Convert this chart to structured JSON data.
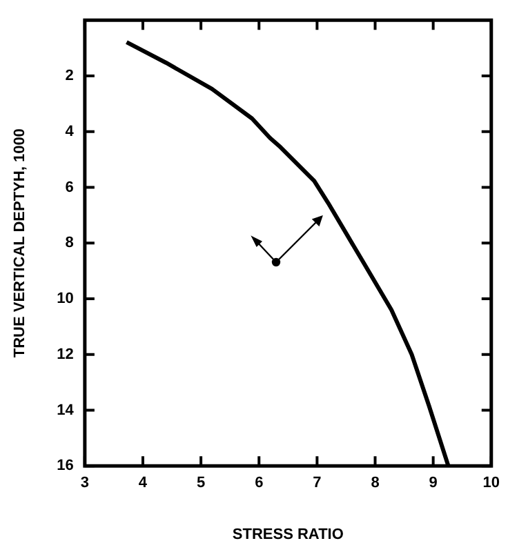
{
  "chart_data": {
    "type": "line",
    "xlabel": "STRESS RATIO",
    "ylabel": "TRUE VERTICAL DEPTYH, 1000",
    "x": [
      3.72,
      4.4,
      5.19,
      5.88,
      6.19,
      6.37,
      6.95,
      7.19,
      7.81,
      8.28,
      8.63,
      8.93,
      9.26
    ],
    "series": [
      {
        "color": "#000000",
        "values": [
          0.79,
          1.53,
          2.47,
          3.53,
          4.23,
          4.56,
          5.77,
          6.56,
          8.74,
          10.4,
          12.0,
          13.86,
          16.0
        ]
      }
    ],
    "xlim": [
      3,
      10
    ],
    "xticks": [
      3,
      4,
      5,
      6,
      7,
      8,
      9,
      10
    ],
    "ylim": [
      16,
      0
    ],
    "yticks": [
      2,
      4,
      6,
      8,
      10,
      12,
      14,
      16
    ],
    "grid": false,
    "legend": false,
    "marker": "none",
    "line_style": "solid"
  }
}
